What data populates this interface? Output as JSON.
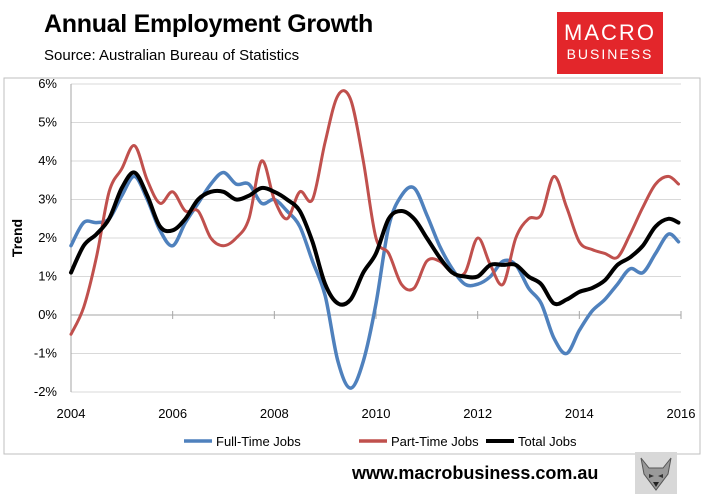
{
  "header": {
    "title": "Annual Employment Growth",
    "subtitle": "Source: Australian Bureau of Statistics"
  },
  "logo": {
    "line1": "MACRO",
    "line2": "BUSINESS",
    "color": "#e3262b"
  },
  "footer": {
    "website": "www.macrobusiness.com.au",
    "mascot_icon": "wolf-icon"
  },
  "chart_data": {
    "type": "line",
    "ylabel": "Trend",
    "xlabel": "",
    "xlim": [
      2004,
      2016
    ],
    "ylim": [
      -2,
      6
    ],
    "yticks": [
      -2,
      -1,
      0,
      1,
      2,
      3,
      4,
      5,
      6
    ],
    "ytick_labels": [
      "-2%",
      "-1%",
      "0%",
      "1%",
      "2%",
      "3%",
      "4%",
      "5%",
      "6%"
    ],
    "xticks": [
      2004,
      2006,
      2008,
      2010,
      2012,
      2014,
      2016
    ],
    "xtick_labels": [
      "2004",
      "2006",
      "2008",
      "2010",
      "2012",
      "2014",
      "2016"
    ],
    "grid": "horizontal",
    "legend_position": "bottom",
    "series": [
      {
        "name": "Full-Time Jobs",
        "color": "#4f81bd",
        "x": [
          2004,
          2004.25,
          2004.5,
          2004.75,
          2005,
          2005.25,
          2005.5,
          2005.75,
          2006,
          2006.25,
          2006.5,
          2006.75,
          2007,
          2007.25,
          2007.5,
          2007.75,
          2008,
          2008.25,
          2008.5,
          2008.75,
          2009,
          2009.25,
          2009.5,
          2009.75,
          2010,
          2010.25,
          2010.5,
          2010.75,
          2011,
          2011.25,
          2011.5,
          2011.75,
          2012,
          2012.25,
          2012.5,
          2012.75,
          2013,
          2013.25,
          2013.5,
          2013.75,
          2014,
          2014.25,
          2014.5,
          2014.75,
          2015,
          2015.25,
          2015.5,
          2015.75,
          2015.95
        ],
        "y": [
          1.8,
          2.4,
          2.4,
          2.5,
          3.1,
          3.6,
          3.0,
          2.2,
          1.8,
          2.4,
          2.9,
          3.4,
          3.7,
          3.4,
          3.4,
          2.9,
          3.0,
          2.7,
          2.3,
          1.4,
          0.5,
          -1.2,
          -1.9,
          -1.2,
          0.3,
          2.3,
          3.1,
          3.3,
          2.6,
          1.8,
          1.2,
          0.8,
          0.8,
          1.0,
          1.4,
          1.3,
          0.7,
          0.3,
          -0.6,
          -1.0,
          -0.4,
          0.1,
          0.4,
          0.8,
          1.2,
          1.1,
          1.6,
          2.1,
          1.9
        ]
      },
      {
        "name": "Part-Time Jobs",
        "color": "#c0504d",
        "x": [
          2004,
          2004.25,
          2004.5,
          2004.75,
          2005,
          2005.25,
          2005.5,
          2005.75,
          2006,
          2006.25,
          2006.5,
          2006.75,
          2007,
          2007.25,
          2007.5,
          2007.75,
          2008,
          2008.25,
          2008.5,
          2008.75,
          2009,
          2009.25,
          2009.5,
          2009.75,
          2010,
          2010.25,
          2010.5,
          2010.75,
          2011,
          2011.25,
          2011.5,
          2011.75,
          2012,
          2012.25,
          2012.5,
          2012.75,
          2013,
          2013.25,
          2013.5,
          2013.75,
          2014,
          2014.25,
          2014.5,
          2014.75,
          2015,
          2015.25,
          2015.5,
          2015.75,
          2015.95
        ],
        "y": [
          -0.5,
          0.2,
          1.5,
          3.2,
          3.8,
          4.4,
          3.5,
          2.9,
          3.2,
          2.7,
          2.7,
          2.0,
          1.8,
          2.0,
          2.5,
          4.0,
          3.0,
          2.5,
          3.2,
          3.0,
          4.5,
          5.7,
          5.6,
          4.0,
          2.0,
          1.6,
          0.8,
          0.7,
          1.4,
          1.4,
          1.1,
          1.1,
          2.0,
          1.3,
          0.8,
          2.0,
          2.5,
          2.6,
          3.6,
          2.8,
          1.9,
          1.7,
          1.6,
          1.5,
          2.1,
          2.8,
          3.4,
          3.6,
          3.4
        ]
      },
      {
        "name": "Total Jobs",
        "color": "#000000",
        "x": [
          2004,
          2004.25,
          2004.5,
          2004.75,
          2005,
          2005.25,
          2005.5,
          2005.75,
          2006,
          2006.25,
          2006.5,
          2006.75,
          2007,
          2007.25,
          2007.5,
          2007.75,
          2008,
          2008.25,
          2008.5,
          2008.75,
          2009,
          2009.25,
          2009.5,
          2009.75,
          2010,
          2010.25,
          2010.5,
          2010.75,
          2011,
          2011.25,
          2011.5,
          2011.75,
          2012,
          2012.25,
          2012.5,
          2012.75,
          2013,
          2013.25,
          2013.5,
          2013.75,
          2014,
          2014.25,
          2014.5,
          2014.75,
          2015,
          2015.25,
          2015.5,
          2015.75,
          2015.95
        ],
        "y": [
          1.1,
          1.8,
          2.1,
          2.5,
          3.3,
          3.7,
          3.1,
          2.3,
          2.2,
          2.5,
          3.0,
          3.2,
          3.2,
          3.0,
          3.1,
          3.3,
          3.2,
          3.0,
          2.7,
          1.9,
          0.8,
          0.3,
          0.4,
          1.1,
          1.6,
          2.5,
          2.7,
          2.5,
          2.0,
          1.5,
          1.1,
          1.0,
          1.0,
          1.3,
          1.3,
          1.3,
          1.0,
          0.8,
          0.3,
          0.4,
          0.6,
          0.7,
          0.9,
          1.3,
          1.5,
          1.8,
          2.3,
          2.5,
          2.4
        ]
      }
    ]
  }
}
